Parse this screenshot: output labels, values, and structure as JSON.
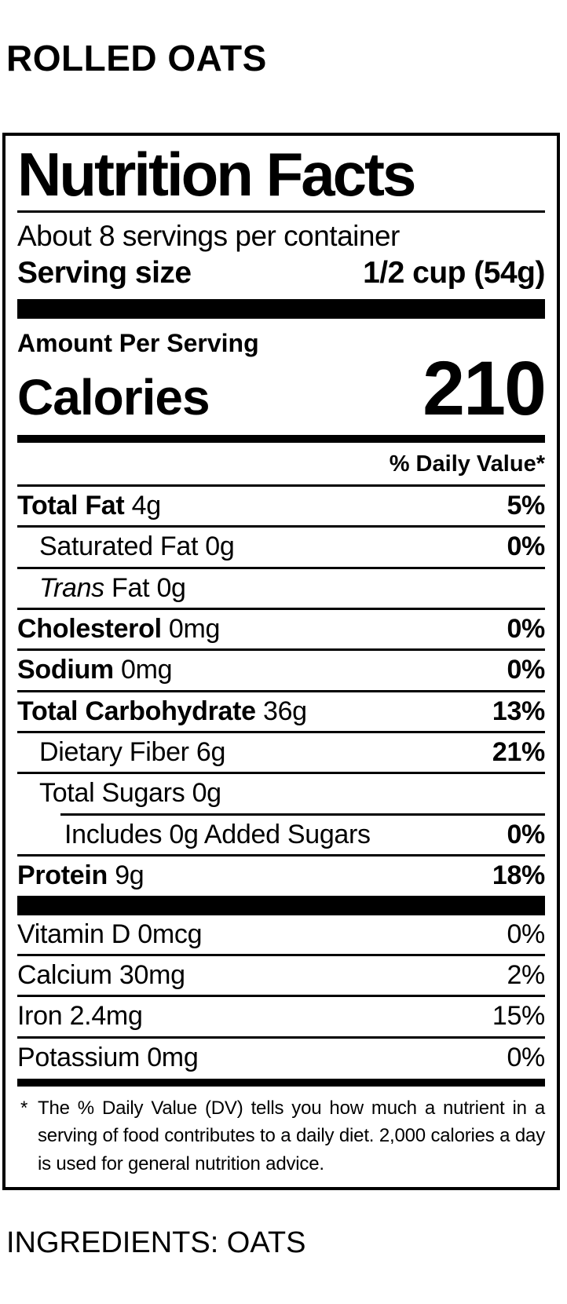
{
  "page": {
    "product_title": "ROLLED OATS",
    "ingredients": "INGREDIENTS: OATS"
  },
  "label": {
    "title": "Nutrition Facts",
    "servings_per_container": "About 8 servings per container",
    "serving_size_label": "Serving size",
    "serving_size_value": "1/2 cup (54g)",
    "amount_per_serving": "Amount Per Serving",
    "calories_label": "Calories",
    "calories_value": "210",
    "daily_value_header": "% Daily Value*",
    "nutrients": [
      {
        "name": "Total Fat",
        "amount": "4g",
        "dv": "5%",
        "name_bold": true,
        "dv_bold": true,
        "indent": 0,
        "rule_below": "full"
      },
      {
        "name": "Saturated Fat",
        "amount": "0g",
        "dv": "0%",
        "name_bold": false,
        "dv_bold": true,
        "indent": 1,
        "rule_below": "full"
      },
      {
        "italic_lead": "Trans",
        "name": "Fat",
        "amount": "0g",
        "dv": "",
        "name_bold": false,
        "dv_bold": false,
        "indent": 1,
        "rule_below": "full"
      },
      {
        "name": "Cholesterol",
        "amount": "0mg",
        "dv": "0%",
        "name_bold": true,
        "dv_bold": true,
        "indent": 0,
        "rule_below": "full"
      },
      {
        "name": "Sodium",
        "amount": "0mg",
        "dv": "0%",
        "name_bold": true,
        "dv_bold": true,
        "indent": 0,
        "rule_below": "full"
      },
      {
        "name": "Total Carbohydrate",
        "amount": "36g",
        "dv": "13%",
        "name_bold": true,
        "dv_bold": true,
        "indent": 0,
        "rule_below": "full"
      },
      {
        "name": "Dietary Fiber",
        "amount": "6g",
        "dv": "21%",
        "name_bold": false,
        "dv_bold": true,
        "indent": 1,
        "rule_below": "full"
      },
      {
        "name": "Total Sugars",
        "amount": "0g",
        "dv": "",
        "name_bold": false,
        "dv_bold": false,
        "indent": 1,
        "rule_below": "partial"
      },
      {
        "name": "Includes 0g Added Sugars",
        "amount": "",
        "dv": "0%",
        "name_bold": false,
        "dv_bold": true,
        "indent": 2,
        "rule_below": "full"
      },
      {
        "name": "Protein",
        "amount": "9g",
        "dv": "18%",
        "name_bold": true,
        "dv_bold": true,
        "indent": 0,
        "rule_below": "none"
      }
    ],
    "vitamins": [
      {
        "name": "Vitamin D",
        "amount": "0mcg",
        "dv": "0%",
        "name_bold": false,
        "dv_bold": false,
        "indent": 0,
        "rule_below": "full"
      },
      {
        "name": "Calcium",
        "amount": "30mg",
        "dv": "2%",
        "name_bold": false,
        "dv_bold": false,
        "indent": 0,
        "rule_below": "full"
      },
      {
        "name": "Iron",
        "amount": "2.4mg",
        "dv": "15%",
        "name_bold": false,
        "dv_bold": false,
        "indent": 0,
        "rule_below": "full"
      },
      {
        "name": "Potassium",
        "amount": "0mg",
        "dv": "0%",
        "name_bold": false,
        "dv_bold": false,
        "indent": 0,
        "rule_below": "none"
      }
    ],
    "footnote_marker": "*",
    "footnote": "The % Daily Value (DV) tells you how much a nutrient in a serving of food contributes to a daily diet. 2,000 calories a day is used for general nutrition advice.",
    "colors": {
      "foreground": "#000000",
      "background": "#ffffff"
    }
  }
}
